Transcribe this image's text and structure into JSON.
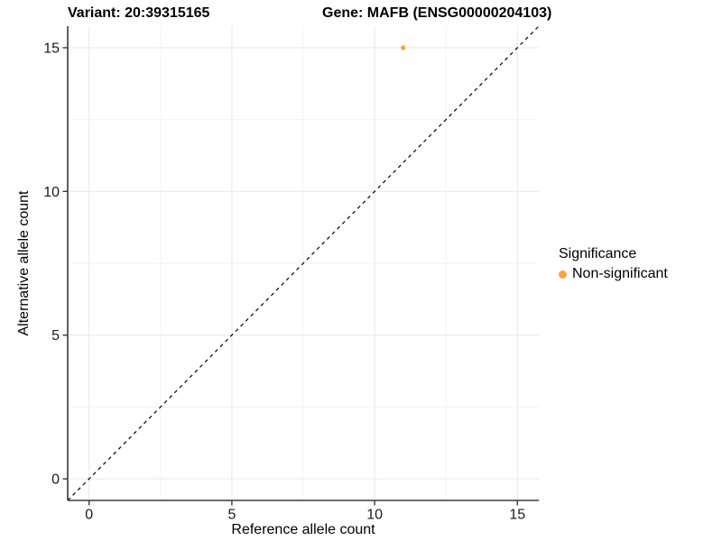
{
  "titles": {
    "variant": "Variant: 20:39315165",
    "gene": "Gene: MAFB (ENSG00000204103)"
  },
  "colors": {
    "point": "#FAA53D",
    "axis_line": "#3A3A3A",
    "tick_text": "#1A1A1A",
    "grid_major": "#E9E9E9",
    "grid_minor": "#F3F3F3",
    "identity_line": "#000000",
    "background": "#FFFFFF"
  },
  "chart_data": {
    "type": "scatter",
    "title_left": "Variant: 20:39315165",
    "title_right": "Gene: MAFB (ENSG00000204103)",
    "xlabel": "Reference allele count",
    "ylabel": "Alternative allele count",
    "xlim": [
      -0.75,
      15.75
    ],
    "ylim": [
      -0.75,
      15.75
    ],
    "x_ticks": [
      0,
      5,
      10,
      15
    ],
    "y_ticks": [
      0,
      5,
      10,
      15
    ],
    "x_minor_ticks": [
      2.5,
      7.5,
      12.5
    ],
    "y_minor_ticks": [
      2.5,
      7.5,
      12.5
    ],
    "grid": "major+minor",
    "reference_line": {
      "type": "identity",
      "style": "dashed",
      "from": -0.75,
      "to": 15.75
    },
    "series": [
      {
        "name": "Non-significant",
        "color": "#FAA53D",
        "points": [
          [
            11,
            15
          ]
        ]
      }
    ],
    "legend": {
      "title": "Significance",
      "position": "right",
      "items": [
        {
          "label": "Non-significant",
          "color": "#FAA53D"
        }
      ]
    }
  }
}
